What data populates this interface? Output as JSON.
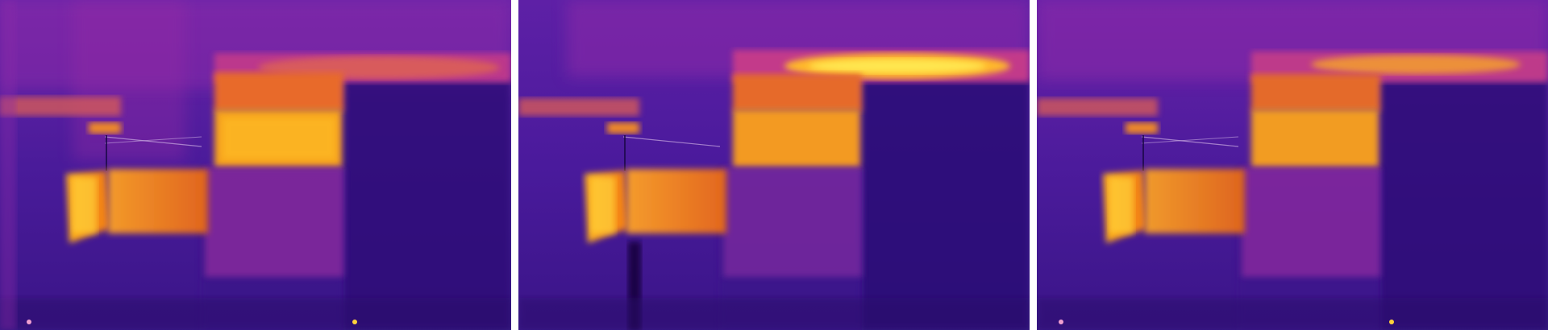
{
  "image": {
    "description_kind": "thermal-image-triptych",
    "panels": [
      {
        "name": "thermal-panel-1"
      },
      {
        "name": "thermal-panel-2"
      },
      {
        "name": "thermal-panel-3"
      }
    ],
    "palette": {
      "background": "#4b1c9c",
      "dark": "#2b0f6e",
      "magenta": "#a21ea8",
      "orange": "#f08a18",
      "yellow": "#ffd21e",
      "hot": "#fff04a"
    }
  }
}
